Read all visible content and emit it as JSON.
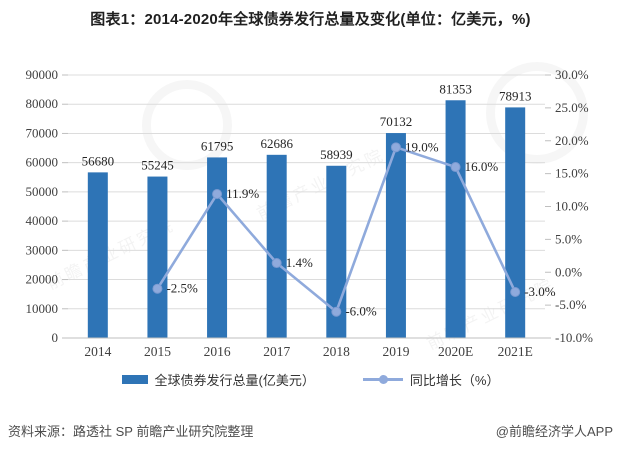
{
  "title": "图表1：2014-2020年全球债券发行总量及变化(单位：亿美元，%)",
  "watermark": {
    "text": "前瞻产业研究院"
  },
  "legend": {
    "items": [
      {
        "label": "全球债券发行总量(亿美元）",
        "marker": "bar-swatch",
        "color": "#2E74B6"
      },
      {
        "label": "同比增长（%）",
        "marker": "line-dot-swatch",
        "color": "#8FAADC"
      }
    ]
  },
  "footer": {
    "source": "资料来源：路透社 SP 前瞻产业研究院整理",
    "brand": "@前瞻经济学人APP"
  },
  "chart_data": {
    "type": "bar",
    "combo": "bar+line dual axis",
    "title": "图表1：2014-2020年全球债券发行总量及变化(单位：亿美元，%)",
    "categories": [
      "2014",
      "2015",
      "2016",
      "2017",
      "2018",
      "2019",
      "2020E",
      "2021E"
    ],
    "series": [
      {
        "name": "全球债券发行总量(亿美元）",
        "type": "bar",
        "axis": "left",
        "color": "#2E74B6",
        "values": [
          56680,
          55245,
          61795,
          62686,
          58939,
          70132,
          81353,
          78913
        ]
      },
      {
        "name": "同比增长（%）",
        "type": "line",
        "axis": "right",
        "color": "#8FAADC",
        "values": [
          null,
          -2.5,
          11.9,
          1.4,
          -6.0,
          19.0,
          16.0,
          -3.0
        ]
      }
    ],
    "xlabel": "",
    "ylabel": "",
    "y_left": {
      "min": 0,
      "max": 90000,
      "step": 10000
    },
    "y_right": {
      "min": -10,
      "max": 30,
      "step": 5,
      "suffix": "%"
    },
    "grid": true,
    "legend_position": "bottom",
    "colors": {
      "bar": "#2E74B6",
      "line": "#8FAADC",
      "marker_stroke": "#7B9AD1",
      "gridline": "#DCDCDC",
      "axis": "#BFBFBF",
      "tick_label": "#404040",
      "data_label": "#262626"
    }
  }
}
